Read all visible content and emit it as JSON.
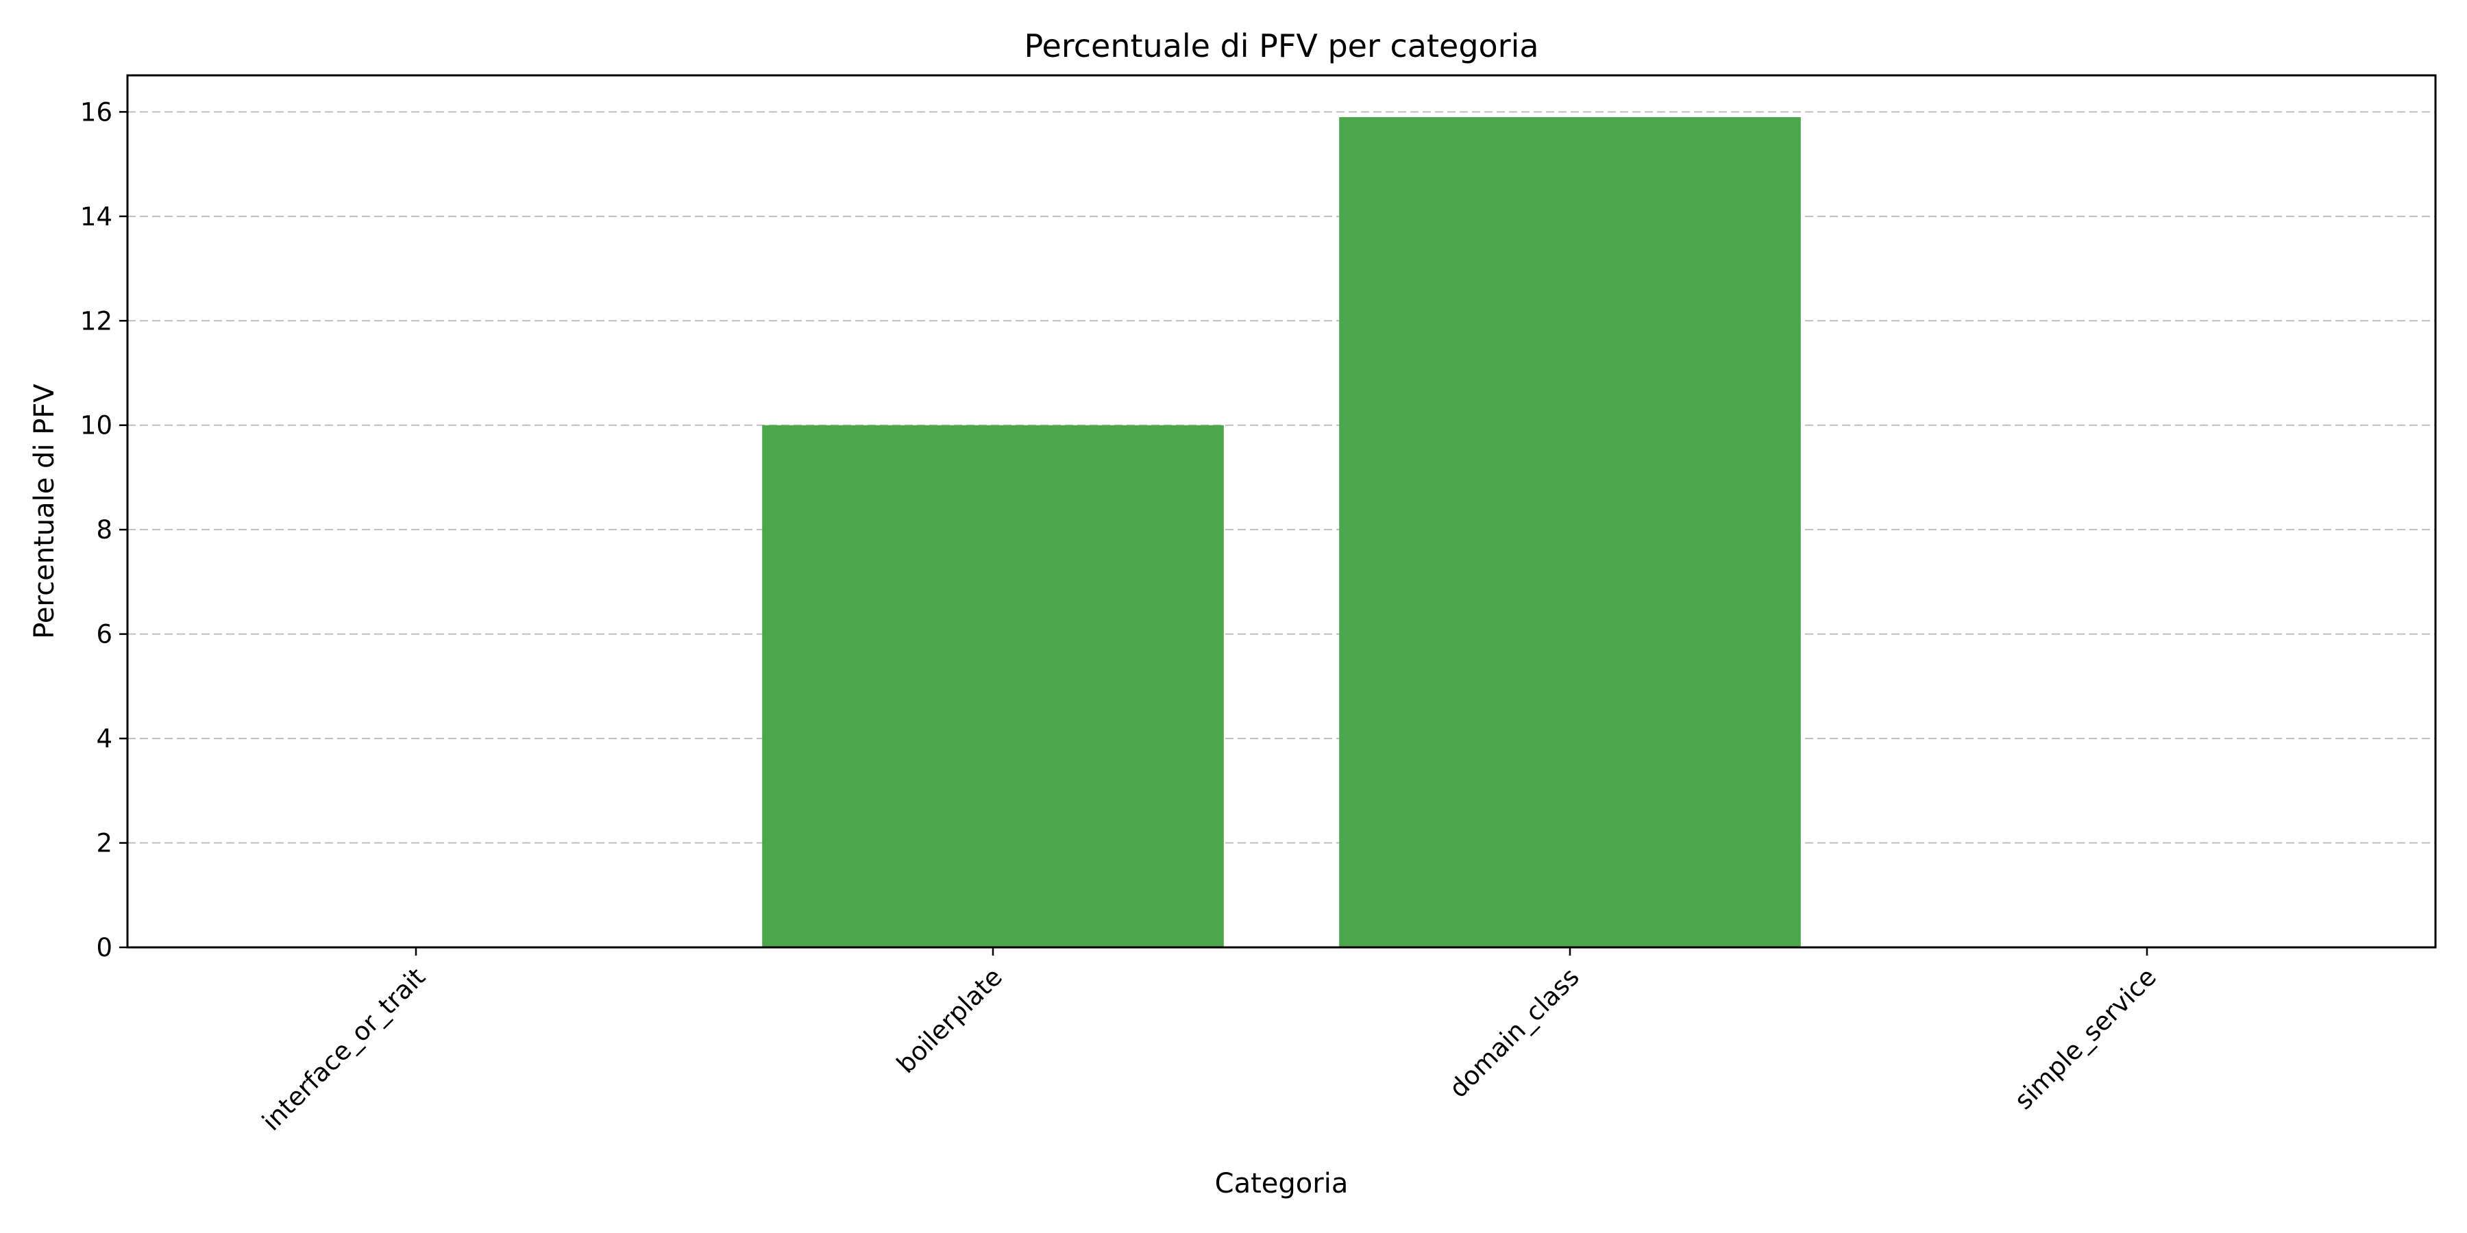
{
  "chart_data": {
    "type": "bar",
    "title": "Percentuale di PFV per categoria",
    "xlabel": "Categoria",
    "ylabel": "Percentuale di PFV",
    "categories": [
      "interface_or_trait",
      "boilerplate",
      "domain_class",
      "simple_service"
    ],
    "values": [
      0,
      10,
      15.9,
      0
    ],
    "ylim": [
      0,
      16.7
    ],
    "yticks": [
      0,
      2,
      4,
      6,
      8,
      10,
      12,
      14,
      16
    ],
    "grid": "y-dashed",
    "bar_color": "#4ca64c"
  }
}
